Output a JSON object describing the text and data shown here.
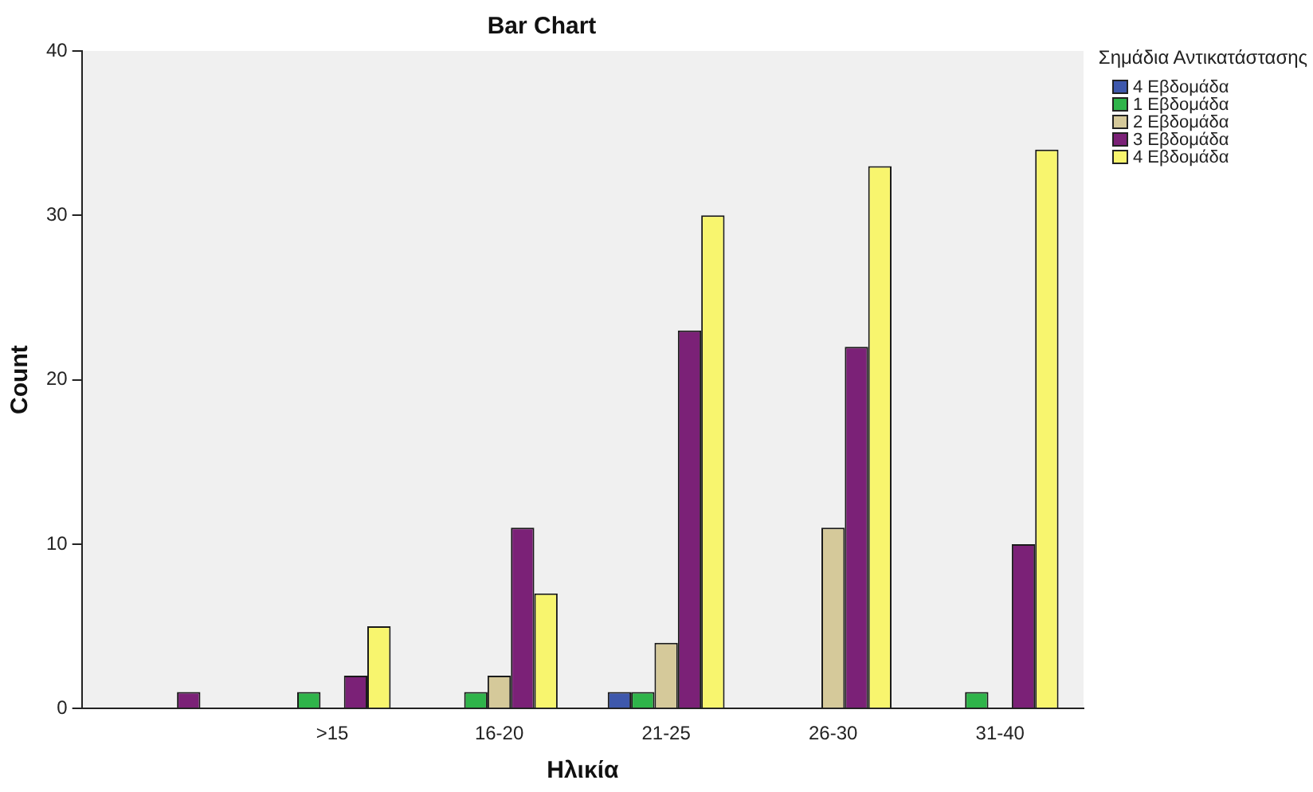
{
  "chart_data": {
    "type": "bar",
    "title": "Bar Chart",
    "xlabel": "Ηλικία",
    "ylabel": "Count",
    "legend_title": "Σημάδια Αντικατάστασης",
    "legend": "top right",
    "categories": [
      null,
      ">15",
      "16-20",
      "21-25",
      "26-30",
      "31-40"
    ],
    "series": [
      {
        "name": "4 Εβδομάδα",
        "color": "#3e58ac",
        "values": [
          null,
          null,
          null,
          1,
          null,
          null
        ]
      },
      {
        "name": "1 Εβδομάδα",
        "color": "#2fb44a",
        "values": [
          null,
          1,
          1,
          1,
          null,
          1
        ]
      },
      {
        "name": "2 Εβδομάδα",
        "color": "#d5c99a",
        "values": [
          null,
          null,
          2,
          4,
          11,
          null
        ]
      },
      {
        "name": "3 Εβδομάδα",
        "color": "#7b2177",
        "values": [
          1,
          2,
          11,
          23,
          22,
          10
        ]
      },
      {
        "name": "4 Εβδομάδα",
        "color": "#f8f56e",
        "values": [
          null,
          5,
          7,
          30,
          33,
          34
        ]
      }
    ],
    "ylim": [
      0,
      40
    ],
    "yticks": [
      0,
      10,
      20,
      30,
      40
    ],
    "grid": false
  }
}
